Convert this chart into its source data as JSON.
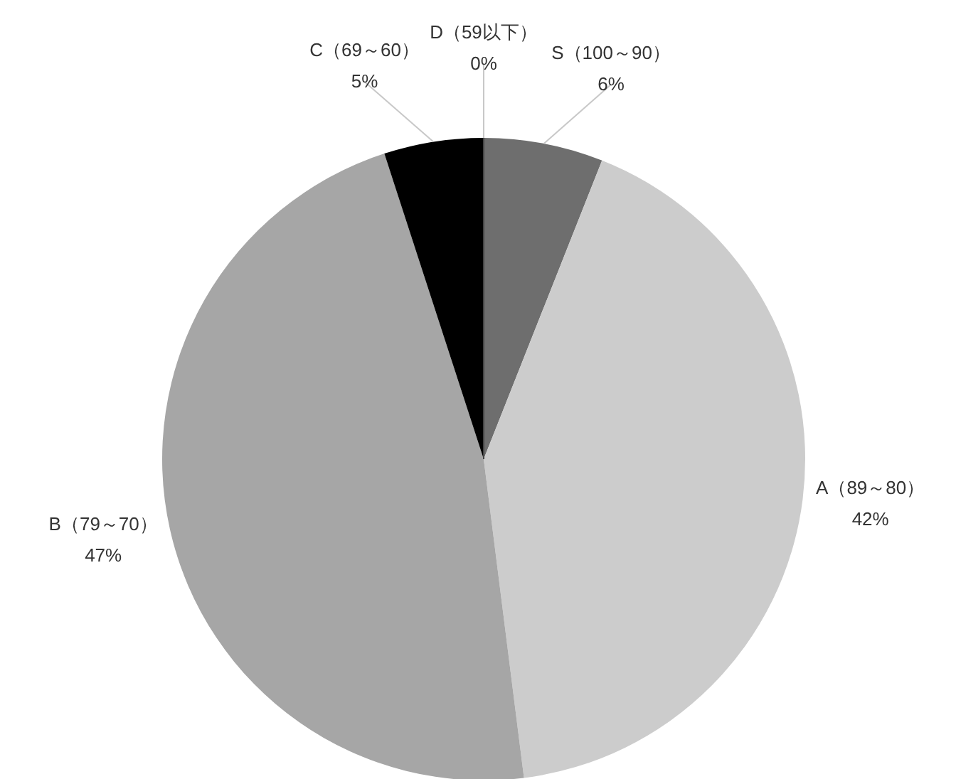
{
  "chart_data": {
    "type": "pie",
    "categories": [
      "S（100～90）",
      "A（89～80）",
      "B（79～70）",
      "C（69～60）",
      "D（59以下）"
    ],
    "values": [
      6,
      42,
      47,
      5,
      0
    ],
    "value_labels": [
      "6%",
      "42%",
      "47%",
      "5%",
      "0%"
    ],
    "colors": [
      "#6e6e6e",
      "#cccccc",
      "#a6a6a6",
      "#000000",
      "#444444"
    ]
  }
}
